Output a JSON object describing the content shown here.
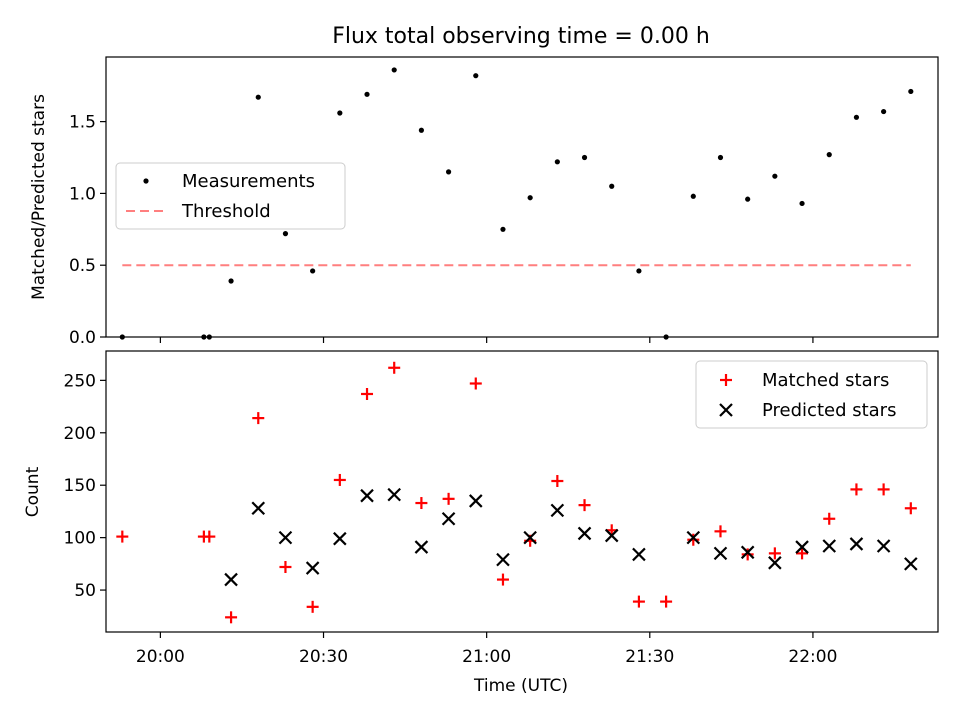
{
  "chart_data": [
    {
      "type": "scatter",
      "title": "Flux total observing time = 0.00 h",
      "xlabel": "",
      "ylabel": "Matched/Predicted stars",
      "ylim": [
        0,
        1.95
      ],
      "yticks": [
        0.0,
        0.5,
        1.0,
        1.5
      ],
      "ytick_labels": [
        "0.0",
        "0.5",
        "1.0",
        "1.5"
      ],
      "grid": false,
      "legend_position": "center-left",
      "x": [
        "19:53",
        "20:08",
        "20:09",
        "20:13",
        "20:18",
        "20:23",
        "20:28",
        "20:33",
        "20:38",
        "20:43",
        "20:48",
        "20:53",
        "20:58",
        "21:03",
        "21:08",
        "21:13",
        "21:18",
        "21:23",
        "21:28",
        "21:33",
        "21:38",
        "21:43",
        "21:48",
        "21:53",
        "21:58",
        "22:03",
        "22:08",
        "22:13",
        "22:18"
      ],
      "series": [
        {
          "name": "Measurements",
          "kind": "points",
          "color": "#000000",
          "values": [
            0.0,
            0.0,
            0.0,
            0.39,
            1.67,
            0.72,
            0.46,
            1.56,
            1.69,
            1.86,
            1.44,
            1.15,
            1.82,
            0.75,
            0.97,
            1.22,
            1.25,
            1.05,
            0.46,
            0.0,
            0.98,
            1.25,
            0.96,
            1.12,
            0.93,
            1.27,
            1.53,
            1.57,
            1.71
          ]
        },
        {
          "name": "Threshold",
          "kind": "dashed-line",
          "color": "#ff7f7f",
          "x": [
            "19:53",
            "22:18"
          ],
          "values": [
            0.5,
            0.5
          ]
        }
      ]
    },
    {
      "type": "scatter",
      "title": "",
      "xlabel": "Time (UTC)",
      "ylabel": "Count",
      "ylim": [
        10,
        278
      ],
      "yticks": [
        50,
        100,
        150,
        200,
        250
      ],
      "ytick_labels": [
        "50",
        "100",
        "150",
        "200",
        "250"
      ],
      "xticks": [
        "20:00",
        "20:30",
        "21:00",
        "21:30",
        "22:00"
      ],
      "grid": false,
      "legend_position": "top-right",
      "x": [
        "19:53",
        "20:08",
        "20:09",
        "20:13",
        "20:18",
        "20:23",
        "20:28",
        "20:33",
        "20:38",
        "20:43",
        "20:48",
        "20:53",
        "20:58",
        "21:03",
        "21:08",
        "21:13",
        "21:18",
        "21:23",
        "21:28",
        "21:33",
        "21:38",
        "21:43",
        "21:48",
        "21:53",
        "21:58",
        "22:03",
        "22:08",
        "22:13",
        "22:18"
      ],
      "series": [
        {
          "name": "Matched stars",
          "marker": "plus",
          "color": "#ff0000",
          "values": [
            101,
            101,
            101,
            24,
            214,
            72,
            34,
            155,
            237,
            262,
            133,
            137,
            247,
            60,
            97,
            154,
            131,
            107,
            39,
            39,
            98,
            106,
            84,
            85,
            85,
            118,
            146,
            146,
            128
          ]
        },
        {
          "name": "Predicted stars",
          "marker": "x",
          "color": "#000000",
          "values": [
            null,
            null,
            null,
            60,
            128,
            100,
            71,
            99,
            140,
            141,
            91,
            118,
            135,
            79,
            100,
            126,
            104,
            102,
            84,
            null,
            100,
            85,
            86,
            76,
            91,
            92,
            94,
            92,
            75
          ]
        }
      ]
    }
  ],
  "x_range": [
    "19:50",
    "22:23"
  ]
}
